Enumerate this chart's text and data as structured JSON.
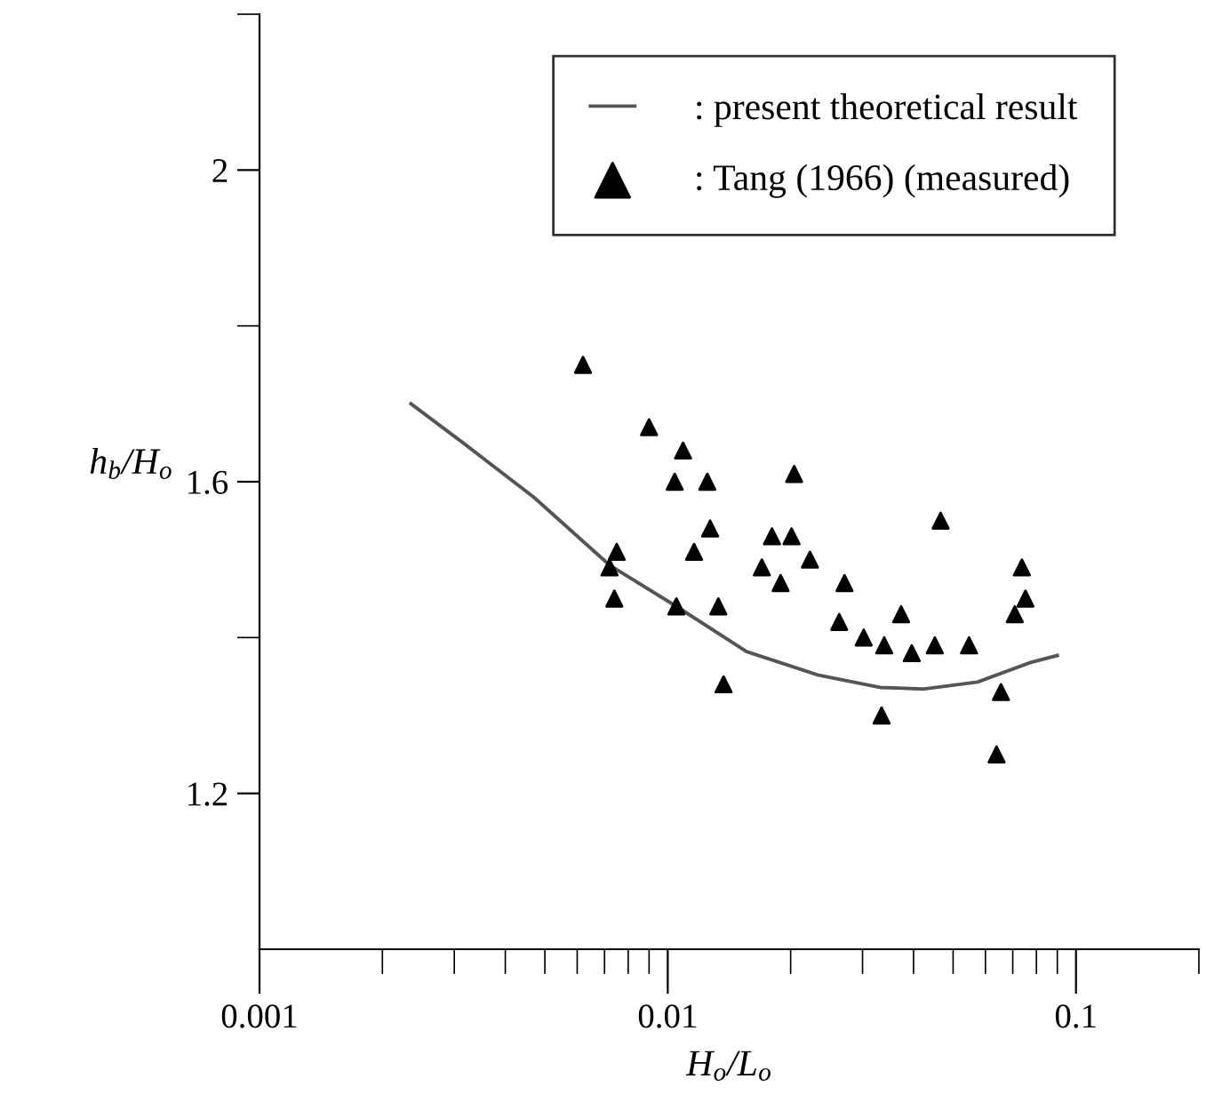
{
  "chart_data": {
    "type": "scatter",
    "xlabel": "H$_{o}$/L$_{o}$",
    "ylabel": "h$_{b}$/H$_{o}$",
    "log": "x",
    "xlim": [
      0.001,
      0.2
    ],
    "ylim": [
      1.0,
      2.2
    ],
    "xticks": [
      0.001,
      {
        "value": 0.002,
        "label": null
      },
      {
        "value": 0.003,
        "label": null
      },
      {
        "value": 0.004,
        "label": null
      },
      {
        "value": 0.005,
        "label": null
      },
      {
        "value": 0.006,
        "label": null
      },
      {
        "value": 0.007,
        "label": null
      },
      {
        "value": 0.008,
        "label": null
      },
      {
        "value": 0.009,
        "label": null
      },
      0.01,
      {
        "value": 0.02,
        "label": null
      },
      {
        "value": 0.03,
        "label": null
      },
      {
        "value": 0.04,
        "label": null
      },
      {
        "value": 0.05,
        "label": null
      },
      {
        "value": 0.06,
        "label": null
      },
      {
        "value": 0.07,
        "label": null
      },
      {
        "value": 0.08,
        "label": null
      },
      {
        "value": 0.09,
        "label": null
      },
      0.1,
      {
        "value": 0.2,
        "label": null
      }
    ],
    "yticks": [
      1.2,
      {
        "value": 1.4,
        "label": null
      },
      1.6,
      {
        "value": 1.8,
        "label": null
      },
      {
        "value": 2.0,
        "label": "2"
      },
      {
        "value": 2.2,
        "label": null
      }
    ],
    "grid": false,
    "legend": "top right",
    "series": [
      {
        "name": ": present theoretical result",
        "type": "line",
        "color": "#555555",
        "marker": "none",
        "line_style": "solid",
        "x": [
          0.00235,
          0.00315,
          0.0047,
          0.0072,
          0.0105,
          0.0156,
          0.0233,
          0.0331,
          0.0425,
          0.0574,
          0.0774,
          0.09
        ],
        "values": [
          1.7,
          1.65,
          1.58,
          1.493,
          1.44,
          1.382,
          1.352,
          1.336,
          1.334,
          1.343,
          1.368,
          1.377
        ]
      },
      {
        "name": ": Tang (1966) (measured)",
        "color": "#000000",
        "marker": "triangle",
        "x": [
          0.0062,
          0.009,
          0.0109,
          0.0104,
          0.0125,
          0.0204,
          0.0075,
          0.0072,
          0.0074,
          0.0127,
          0.0116,
          0.0105,
          0.0133,
          0.0137,
          0.018,
          0.0201,
          0.0223,
          0.017,
          0.0189,
          0.0271,
          0.0263,
          0.0302,
          0.0339,
          0.0334,
          0.0466,
          0.0737,
          0.0752,
          0.0708,
          0.0373,
          0.0396,
          0.0451,
          0.0547,
          0.0655,
          0.0639
        ],
        "values": [
          1.75,
          1.67,
          1.64,
          1.6,
          1.6,
          1.61,
          1.51,
          1.49,
          1.45,
          1.54,
          1.51,
          1.44,
          1.44,
          1.34,
          1.53,
          1.53,
          1.5,
          1.49,
          1.47,
          1.47,
          1.42,
          1.4,
          1.39,
          1.3,
          1.55,
          1.49,
          1.45,
          1.43,
          1.43,
          1.38,
          1.39,
          1.39,
          1.33,
          1.25
        ]
      }
    ]
  }
}
